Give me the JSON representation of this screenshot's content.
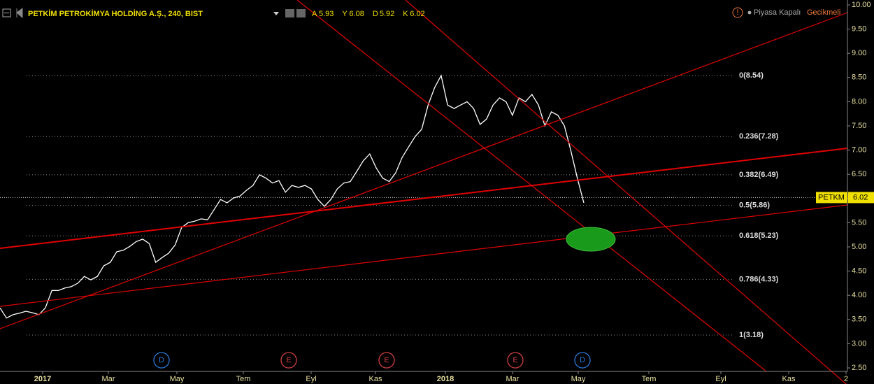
{
  "chart_data": {
    "type": "line",
    "title": "PETKİM PETROKİMYA HOLDİNG A.Ş., 240, BIST",
    "ohlc": [
      {
        "label": "A",
        "value": 5.93
      },
      {
        "label": "Y",
        "value": 6.08
      },
      {
        "label": "D",
        "value": 5.92
      },
      {
        "label": "K",
        "value": 6.02
      }
    ],
    "status": "Piyasa Kapalı",
    "delay": "Gecikmeli",
    "color": "#ffffff",
    "values": [
      3.74,
      3.53,
      3.6,
      3.63,
      3.67,
      3.64,
      3.6,
      3.74,
      4.1,
      4.1,
      4.15,
      4.18,
      4.25,
      4.39,
      4.32,
      4.39,
      4.61,
      4.68,
      4.9,
      4.93,
      5.01,
      5.11,
      5.16,
      5.07,
      4.68,
      4.78,
      4.87,
      5.04,
      5.4,
      5.5,
      5.53,
      5.58,
      5.56,
      5.77,
      5.98,
      5.91,
      6.01,
      6.05,
      6.17,
      6.27,
      6.49,
      6.42,
      6.32,
      6.37,
      6.13,
      6.27,
      6.23,
      6.27,
      6.2,
      5.98,
      5.84,
      5.98,
      6.2,
      6.32,
      6.35,
      6.56,
      6.78,
      6.92,
      6.63,
      6.42,
      6.35,
      6.53,
      6.85,
      7.07,
      7.28,
      7.43,
      7.93,
      8.29,
      8.54,
      7.93,
      7.86,
      7.93,
      8.0,
      7.86,
      7.53,
      7.64,
      7.93,
      8.08,
      8.0,
      7.72,
      8.08,
      8.0,
      8.15,
      7.93,
      7.5,
      7.79,
      7.72,
      7.5,
      6.99,
      6.42,
      5.91
    ],
    "x_labels": [
      "2017",
      "Mar",
      "May",
      "Tem",
      "Eyl",
      "Kas",
      "2018",
      "Mar",
      "May",
      "Tem",
      "Eyl",
      "Kas",
      "2"
    ],
    "ylim": [
      2.5,
      10.0
    ],
    "yticks": [
      {
        "value": 2.5,
        "label": "2.50"
      },
      {
        "value": 3.0,
        "label": "3.00"
      },
      {
        "value": 3.5,
        "label": "3.50"
      },
      {
        "value": 4.0,
        "label": "4.00"
      },
      {
        "value": 4.5,
        "label": "4.50"
      },
      {
        "value": 5.0,
        "label": "5.00"
      },
      {
        "value": 5.5,
        "label": "5.50"
      },
      {
        "value": 6.0,
        "label": "6.00"
      },
      {
        "value": 6.5,
        "label": "6.50"
      },
      {
        "value": 7.0,
        "label": "7.00"
      },
      {
        "value": 7.5,
        "label": "7.50"
      },
      {
        "value": 8.0,
        "label": "8.00"
      },
      {
        "value": 8.5,
        "label": "8.50"
      },
      {
        "value": 9.0,
        "label": "9.00"
      },
      {
        "value": 9.5,
        "label": "9.50"
      },
      {
        "value": 10.0,
        "label": "10.00"
      }
    ],
    "fib_levels": [
      {
        "label": "0(8.54)",
        "value": 8.54
      },
      {
        "label": "0.236(7.28)",
        "value": 7.28
      },
      {
        "label": "0.382(6.49)",
        "value": 6.49
      },
      {
        "label": "0.5(5.86)",
        "value": 5.86
      },
      {
        "label": "0.618(5.23)",
        "value": 5.23
      },
      {
        "label": "0.786(4.33)",
        "value": 4.33
      },
      {
        "label": "1(3.18)",
        "value": 3.18
      }
    ],
    "price_label": {
      "name": "PETKM",
      "value": 6.02
    },
    "events": [
      "D",
      "E",
      "E",
      "E",
      "D"
    ]
  }
}
